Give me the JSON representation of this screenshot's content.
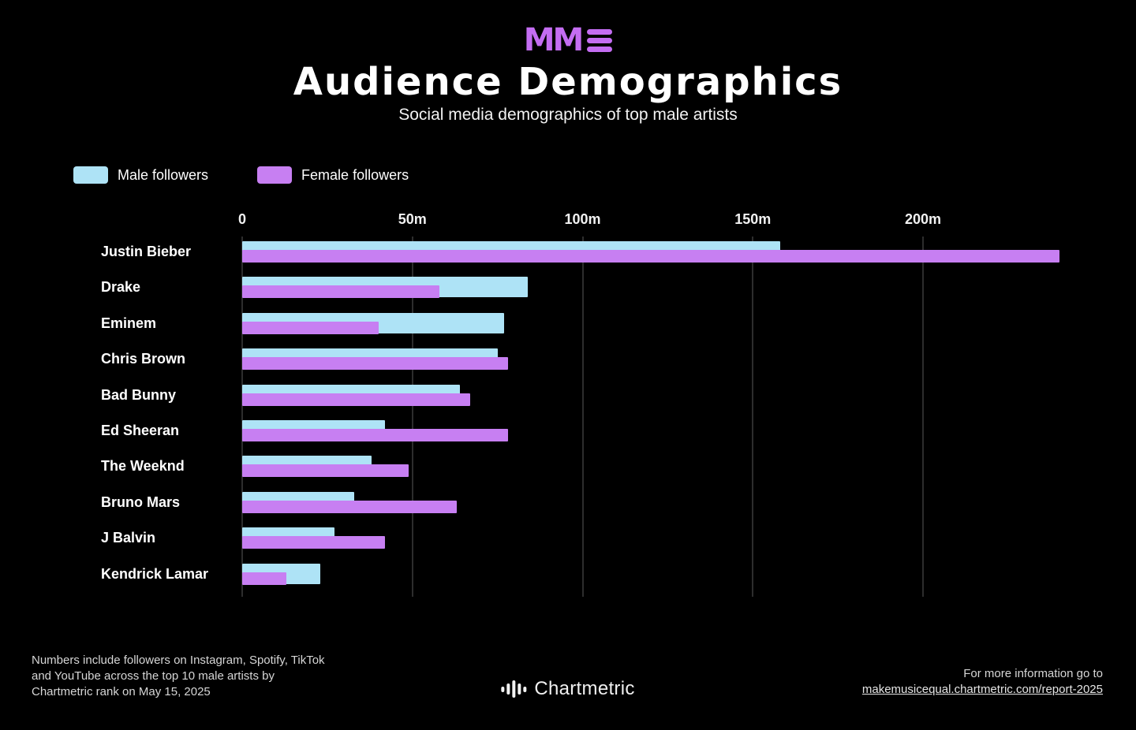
{
  "header": {
    "logo_text": "MM",
    "title": "Audience Demographics",
    "subtitle": "Social media demographics of top male artists"
  },
  "legend": [
    {
      "label": "Male followers",
      "color": "#aee3f6"
    },
    {
      "label": "Female followers",
      "color": "#c77ff2"
    }
  ],
  "chart_data": {
    "type": "bar",
    "orientation": "horizontal",
    "title": "Audience Demographics",
    "subtitle": "Social media demographics of top male artists",
    "unit": "millions of followers",
    "x_ticks": [
      "0",
      "50m",
      "100m",
      "150m",
      "200m"
    ],
    "x_tick_values": [
      0,
      50,
      100,
      150,
      200
    ],
    "xlim": [
      0,
      253
    ],
    "grid": "vertical",
    "legend_position": "top-left",
    "categories": [
      "Justin Bieber",
      "Drake",
      "Eminem",
      "Chris Brown",
      "Bad Bunny",
      "Ed Sheeran",
      "The Weeknd",
      "Bruno Mars",
      "J Balvin",
      "Kendrick Lamar"
    ],
    "series": [
      {
        "name": "Male followers",
        "color": "#aee3f6",
        "values": [
          158,
          84,
          77,
          75,
          64,
          42,
          38,
          33,
          27,
          23
        ]
      },
      {
        "name": "Female followers",
        "color": "#c77ff2",
        "values": [
          240,
          58,
          40,
          78,
          67,
          78,
          49,
          63,
          42,
          13
        ]
      }
    ]
  },
  "footer": {
    "left_lines": [
      "Numbers include followers on Instagram, Spotify, TikTok",
      "and YouTube across the top 10 male artists by",
      "Chartmetric rank on May 15, 2025"
    ],
    "brand": "Chartmetric",
    "right_note": "For more information go to",
    "right_link": "makemusicequal.chartmetric.com/report-2025"
  }
}
